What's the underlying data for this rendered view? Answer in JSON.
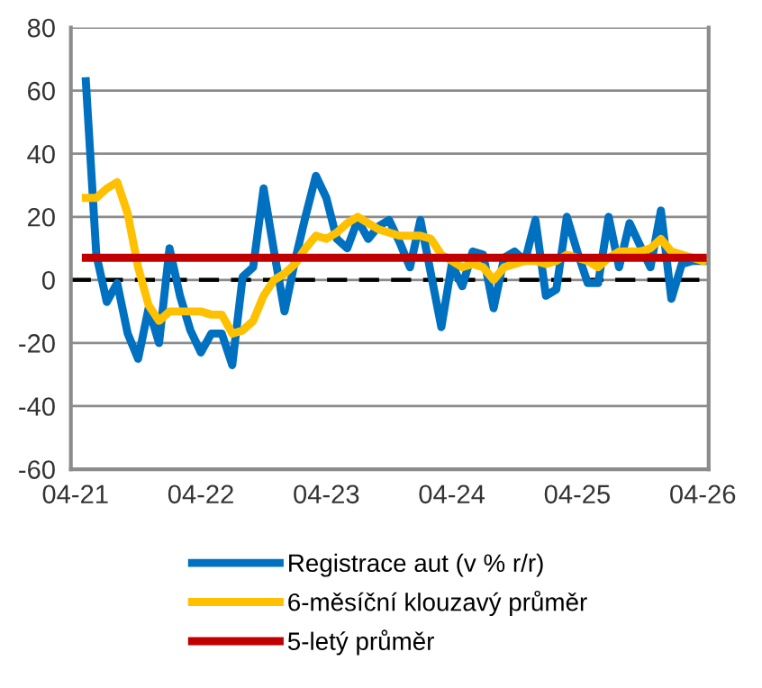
{
  "chart_data": {
    "type": "line",
    "x": [
      "2021-05",
      "2021-06",
      "2021-07",
      "2021-08",
      "2021-09",
      "2021-10",
      "2021-11",
      "2021-12",
      "2022-01",
      "2022-02",
      "2022-03",
      "2022-04",
      "2022-05",
      "2022-06",
      "2022-07",
      "2022-08",
      "2022-09",
      "2022-10",
      "2022-11",
      "2022-12",
      "2023-01",
      "2023-02",
      "2023-03",
      "2023-04",
      "2023-05",
      "2023-06",
      "2023-07",
      "2023-08",
      "2023-09",
      "2023-10",
      "2023-11",
      "2023-12",
      "2024-01",
      "2024-02",
      "2024-03",
      "2024-04",
      "2024-05",
      "2024-06",
      "2024-07",
      "2024-08",
      "2024-09",
      "2024-10",
      "2024-11",
      "2024-12",
      "2025-01",
      "2025-02",
      "2025-03",
      "2025-04",
      "2025-05",
      "2025-06",
      "2025-07",
      "2025-08",
      "2025-09",
      "2025-10",
      "2025-11",
      "2025-12",
      "2026-01",
      "2026-02",
      "2026-03",
      "2026-04"
    ],
    "series": [
      {
        "name": "Registrace aut (v % r/r)",
        "color": "#0070c0",
        "values": [
          63,
          8,
          -7,
          -1,
          -17,
          -25,
          -9,
          -20,
          10,
          -5,
          -16,
          -23,
          -17,
          -17,
          -27,
          1,
          4,
          29,
          9,
          -10,
          6,
          20,
          33,
          26,
          13,
          10,
          19,
          13,
          17,
          19,
          12,
          4,
          19,
          2,
          -15,
          5,
          -2,
          9,
          8,
          -9,
          7,
          9,
          6,
          19,
          -5,
          -3,
          20,
          9,
          -1,
          -1,
          20,
          4,
          18,
          11,
          4,
          22,
          -6,
          5,
          6,
          6
        ]
      },
      {
        "name": "6-měsíční klouzavý průměr",
        "color": "#ffc000",
        "values": [
          26,
          26,
          29,
          31,
          21,
          4,
          -8,
          -13,
          -10,
          -10,
          -10,
          -10,
          -11,
          -11,
          -17,
          -16,
          -13,
          -5,
          0,
          2,
          5,
          10,
          14,
          13,
          15,
          18,
          20,
          18,
          16,
          15,
          14,
          14,
          14,
          13,
          8,
          6,
          4,
          5,
          4,
          0,
          4,
          5,
          6,
          6,
          5,
          6,
          8,
          7,
          6,
          4,
          7,
          9,
          9,
          9,
          10,
          13,
          9,
          8,
          7,
          6
        ]
      },
      {
        "name": "5-letý průměr",
        "color": "#c00000",
        "x": [
          "2021-05",
          "2026-04"
        ],
        "values": [
          7,
          7
        ]
      }
    ],
    "xlim": [
      "2021-03-18",
      "2026-04-18"
    ],
    "xticks": [
      {
        "value": "2021-04",
        "label": "04-21"
      },
      {
        "value": "2022-04",
        "label": "04-22"
      },
      {
        "value": "2023-04",
        "label": "04-23"
      },
      {
        "value": "2024-04",
        "label": "04-24"
      },
      {
        "value": "2025-04",
        "label": "04-25"
      },
      {
        "value": "2026-04",
        "label": "04-26"
      }
    ],
    "ylim": [
      -60,
      80
    ],
    "yticks": [
      -60,
      -40,
      -20,
      0,
      20,
      40,
      60,
      80
    ],
    "ref_lines": [
      {
        "axis": "y",
        "value": 0,
        "color": "#000000",
        "line_style": "dashed"
      }
    ],
    "grid": "y",
    "legend": "bottom",
    "marker": "none",
    "line_style": "solid"
  }
}
